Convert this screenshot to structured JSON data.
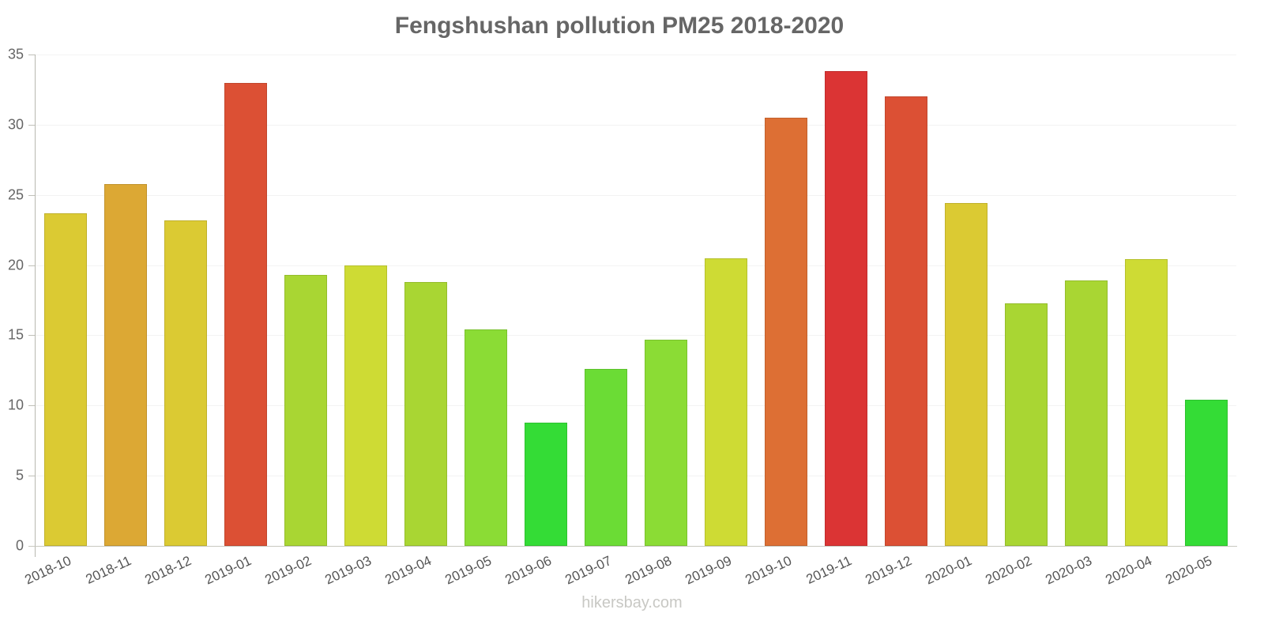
{
  "chart_data": {
    "type": "bar",
    "title": "Fengshushan pollution PM25 2018-2020",
    "xlabel": "",
    "ylabel": "",
    "ylim": [
      0,
      35
    ],
    "yticks": [
      0,
      5,
      10,
      15,
      20,
      25,
      30,
      35
    ],
    "grid": true,
    "legend": null,
    "categories": [
      "2018-10",
      "2018-11",
      "2018-12",
      "2019-01",
      "2019-02",
      "2019-03",
      "2019-04",
      "2019-05",
      "2019-06",
      "2019-07",
      "2019-08",
      "2019-09",
      "2019-10",
      "2019-11",
      "2019-12",
      "2020-01",
      "2020-02",
      "2020-03",
      "2020-04",
      "2020-05"
    ],
    "values": [
      23.7,
      25.8,
      23.2,
      33.0,
      19.3,
      20.0,
      18.8,
      15.4,
      8.8,
      12.6,
      14.7,
      20.5,
      30.5,
      33.8,
      32.0,
      24.4,
      17.3,
      18.9,
      20.4,
      10.4
    ],
    "colors": [
      "#dbca33",
      "#dca834",
      "#dbca33",
      "#dc5034",
      "#a9d633",
      "#cedb34",
      "#a9d633",
      "#8bdc35",
      "#34dc36",
      "#6bdc35",
      "#8bdc35",
      "#cedb34",
      "#dd6f34",
      "#db3434",
      "#dc5034",
      "#dbca33",
      "#a9d633",
      "#a9d633",
      "#cedb34",
      "#34dc36"
    ],
    "watermark": "hikersbay.com"
  }
}
